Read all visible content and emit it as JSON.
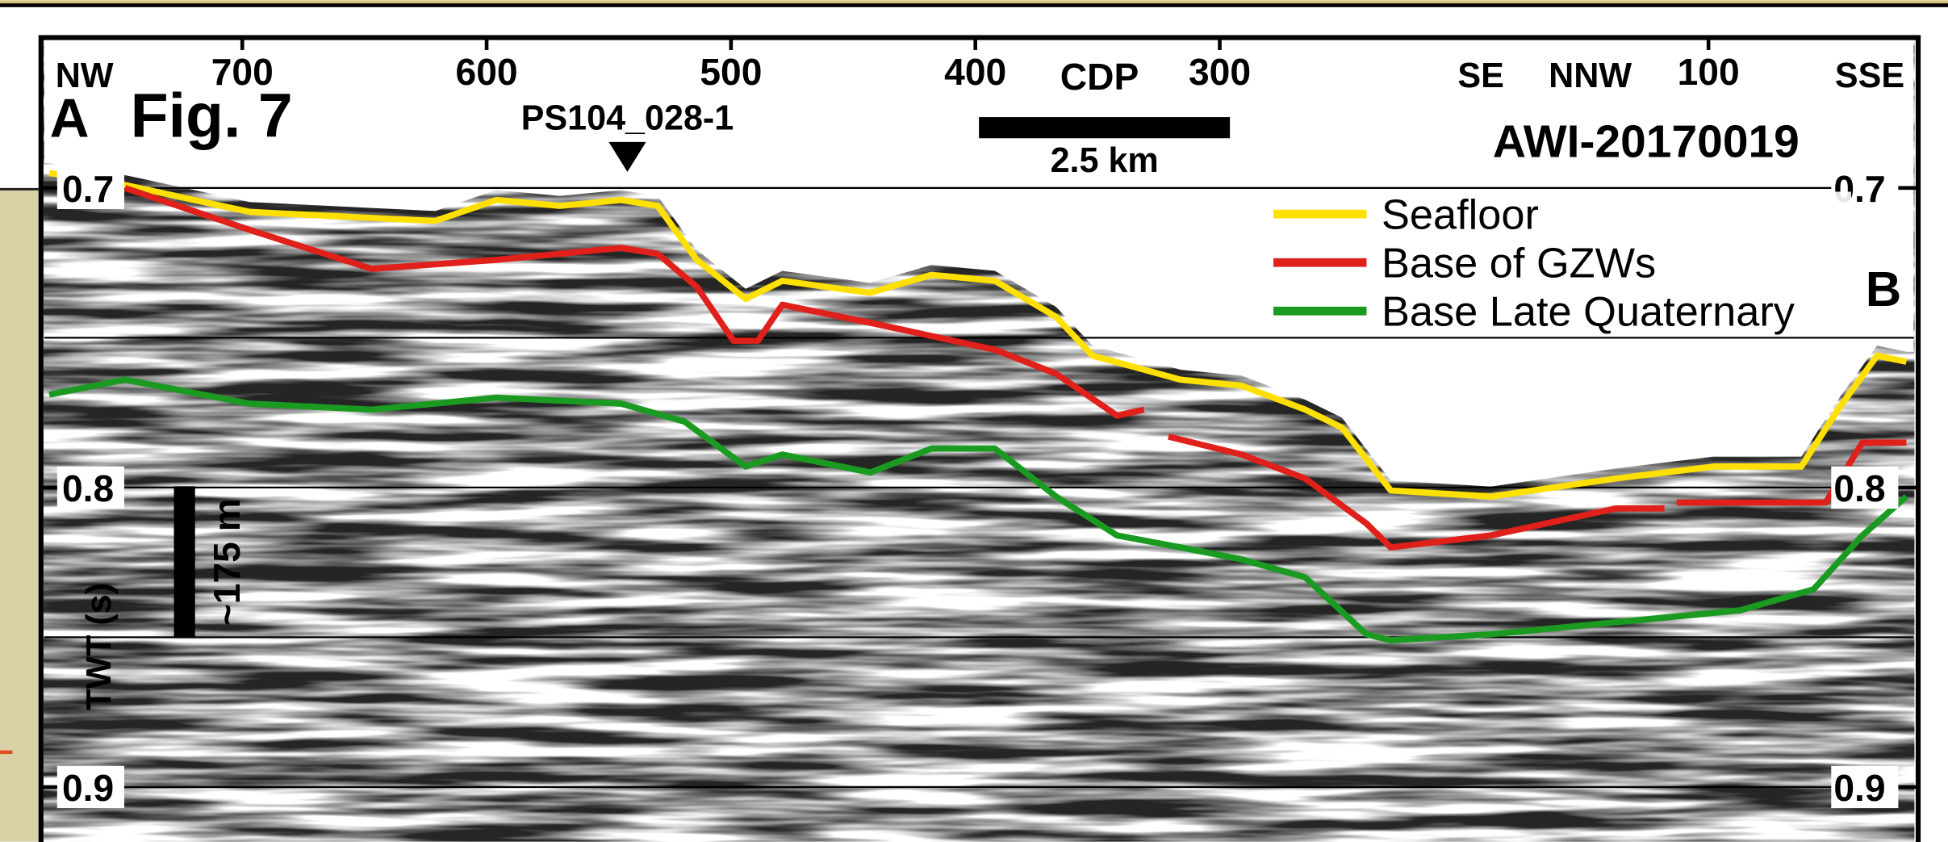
{
  "chart_data": {
    "type": "line",
    "title": "Fig. 7",
    "panel_label": "A",
    "panel_label_end": "B",
    "profile_name": "AWI-20170019",
    "station": "PS104_028-1",
    "x_label": "CDP",
    "y_label": "TWT (s)",
    "scale_bar": "2.5 km",
    "vertical_scale": "~175 m",
    "directions": [
      "NW",
      "SE",
      "NNW",
      "SSE"
    ],
    "xlim": [
      781,
      16
    ],
    "xticks": [
      700,
      600,
      500,
      400,
      300,
      100
    ],
    "ylim": [
      0.65,
      0.918
    ],
    "yticks": [
      0.7,
      0.8,
      0.9
    ],
    "grid_lines": [
      0.7,
      0.75,
      0.8,
      0.85,
      0.9
    ],
    "legend": "upper right",
    "series": [
      {
        "name": "Seafloor",
        "color": "#ffe000",
        "x": [
          779,
          748,
          697,
          647,
          621,
          596,
          570,
          545,
          530,
          514,
          494,
          479,
          443,
          418,
          392,
          367,
          352,
          316,
          291,
          265,
          250,
          230,
          189,
          138,
          98,
          62,
          47,
          31,
          19
        ],
        "values": [
          0.695,
          0.699,
          0.708,
          0.71,
          0.711,
          0.704,
          0.706,
          0.704,
          0.706,
          0.724,
          0.737,
          0.731,
          0.735,
          0.729,
          0.731,
          0.743,
          0.756,
          0.764,
          0.766,
          0.774,
          0.78,
          0.801,
          0.803,
          0.797,
          0.793,
          0.793,
          0.774,
          0.756,
          0.758
        ]
      },
      {
        "name": "Base of GZWs",
        "color": "#e0201a",
        "x": [
          748,
          697,
          647,
          596,
          545,
          530,
          514,
          499,
          489,
          479,
          443,
          392,
          367,
          342,
          331,
          326,
          321,
          291,
          265,
          240,
          230,
          189,
          138,
          118,
          115,
          113,
          87,
          52,
          37,
          19
        ],
        "values": [
          0.7,
          0.714,
          0.727,
          0.724,
          0.72,
          0.722,
          0.733,
          0.751,
          0.751,
          0.739,
          0.745,
          0.754,
          0.762,
          0.776,
          0.774,
          null,
          0.783,
          0.789,
          0.797,
          0.812,
          0.82,
          0.816,
          0.807,
          0.807,
          null,
          0.805,
          0.805,
          0.805,
          0.785,
          0.785
        ]
      },
      {
        "name": "Base Late Quaternary",
        "color": "#1a9a20",
        "x": [
          779,
          748,
          697,
          647,
          596,
          545,
          519,
          494,
          479,
          443,
          418,
          392,
          367,
          342,
          316,
          291,
          265,
          240,
          230,
          189,
          138,
          87,
          57,
          37,
          19
        ],
        "values": [
          0.769,
          0.764,
          0.772,
          0.774,
          0.77,
          0.772,
          0.778,
          0.793,
          0.789,
          0.795,
          0.787,
          0.787,
          0.803,
          0.816,
          0.82,
          0.824,
          0.83,
          0.849,
          0.851,
          0.849,
          0.845,
          0.841,
          0.834,
          0.816,
          0.803
        ]
      }
    ]
  }
}
